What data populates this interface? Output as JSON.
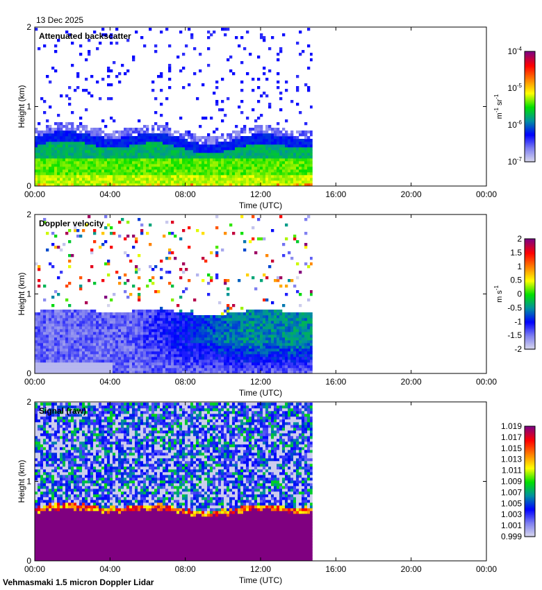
{
  "date": "13 Dec 2025",
  "footer": "Vehmasmaki 1.5 micron Doppler Lidar",
  "chart_data": [
    {
      "type": "heatmap",
      "title": "Attenuated backscatter",
      "xlabel": "Time (UTC)",
      "ylabel": "Height (km)",
      "xticks": [
        "00:00",
        "04:00",
        "08:00",
        "12:00",
        "16:00",
        "20:00",
        "00:00"
      ],
      "yticks": [
        "0",
        "1",
        "2"
      ],
      "xlim_hours": [
        0,
        24
      ],
      "ylim_km": [
        0,
        2
      ],
      "data_end_hours": 14.75,
      "colorbar": {
        "label": "m-1 sr-1",
        "label_main": "m",
        "sup1": "-1",
        "label_mid": " sr",
        "sup2": "-1",
        "scale": "log",
        "range": [
          1e-07,
          0.0001
        ],
        "ticks": [
          {
            "base": "10",
            "exp": "-4"
          },
          {
            "base": "10",
            "exp": "-5"
          },
          {
            "base": "10",
            "exp": "-6"
          },
          {
            "base": "10",
            "exp": "-7"
          }
        ]
      },
      "features": {
        "aerosol_layer_top_km": 0.75,
        "dense_layer_km": [
          0.45,
          0.65
        ],
        "scattered_returns_above_km": 0.8
      }
    },
    {
      "type": "heatmap",
      "title": "Doppler velocity",
      "xlabel": "Time (UTC)",
      "ylabel": "Height (km)",
      "xticks": [
        "00:00",
        "04:00",
        "08:00",
        "12:00",
        "16:00",
        "20:00",
        "00:00"
      ],
      "yticks": [
        "0",
        "1",
        "2"
      ],
      "xlim_hours": [
        0,
        24
      ],
      "ylim_km": [
        0,
        2
      ],
      "data_end_hours": 14.75,
      "colorbar": {
        "label_main": "m s",
        "sup1": "-1",
        "range": [
          -2,
          2
        ],
        "ticks": [
          "2",
          "1.5",
          "1",
          "0.5",
          "0",
          "-0.5",
          "-1",
          "-1.5",
          "-2"
        ]
      },
      "features": {
        "layer_top_km": 0.8,
        "typical_velocity_early": -1.3,
        "typical_velocity_late": -0.6
      }
    },
    {
      "type": "heatmap",
      "title": "Signal (raw)",
      "xlabel": "Time (UTC)",
      "ylabel": "Height (km)",
      "xticks": [
        "00:00",
        "04:00",
        "08:00",
        "12:00",
        "16:00",
        "20:00",
        "00:00"
      ],
      "yticks": [
        "0",
        "1",
        "2"
      ],
      "xlim_hours": [
        0,
        24
      ],
      "ylim_km": [
        0,
        2
      ],
      "data_end_hours": 14.75,
      "colorbar": {
        "range": [
          0.999,
          1.02
        ],
        "ticks": [
          "1.019",
          "1.017",
          "1.015",
          "1.013",
          "1.011",
          "1.009",
          "1.007",
          "1.005",
          "1.003",
          "1.001",
          "0.999"
        ]
      },
      "features": {
        "saturated_layer_top_km": 0.65
      }
    }
  ],
  "colors": {
    "stops": [
      "#dcdcec",
      "#8080f0",
      "#0000ff",
      "#0090a0",
      "#00e000",
      "#ffff00",
      "#ff8000",
      "#ff0000",
      "#800080"
    ]
  }
}
